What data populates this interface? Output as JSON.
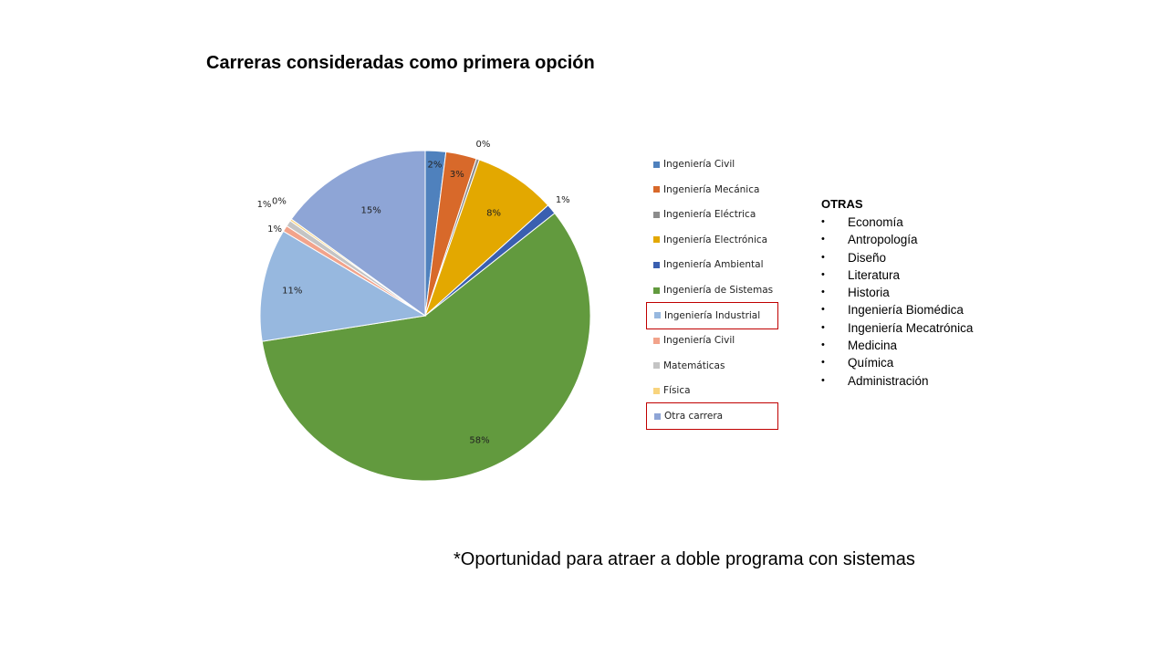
{
  "title": "Carreras consideradas como primera opción",
  "chart_data": {
    "type": "pie",
    "title": "",
    "slices": [
      {
        "label": "Ingeniería Civil",
        "value": 2,
        "value_label": "2%",
        "color": "#4F81BD"
      },
      {
        "label": "Ingeniería Mecánica",
        "value": 3,
        "value_label": "3%",
        "color": "#D8692A"
      },
      {
        "label": "Ingeniería Eléctrica",
        "value": 0.3,
        "value_label": "0%",
        "color": "#8C8C8C"
      },
      {
        "label": "Ingeniería Electrónica",
        "value": 8,
        "value_label": "8%",
        "color": "#E3A800"
      },
      {
        "label": "Ingeniería Ambiental",
        "value": 1,
        "value_label": "1%",
        "color": "#3A5FB0"
      },
      {
        "label": "Ingeniería de Sistemas",
        "value": 58,
        "value_label": "58%",
        "color": "#629A3E"
      },
      {
        "label": "Ingeniería Industrial",
        "value": 11,
        "value_label": "11%",
        "color": "#97B8DF"
      },
      {
        "label": "Ingeniería Civil",
        "value": 0.6,
        "value_label": "1%",
        "color": "#F2A38B"
      },
      {
        "label": "Matemáticas",
        "value": 0.6,
        "value_label": "1%",
        "color": "#C4C4C4"
      },
      {
        "label": "Física",
        "value": 0.2,
        "value_label": "0%",
        "color": "#F8D47E"
      },
      {
        "label": "Otra carrera",
        "value": 15,
        "value_label": "15%",
        "color": "#8EA5D6"
      }
    ],
    "legend_position": "right",
    "highlighted_legend_entries": [
      "Ingeniería Industrial",
      "Otra carrera"
    ],
    "highlight_color": "#C00000"
  },
  "otras": {
    "heading": "OTRAS",
    "bullet": "•",
    "items": [
      "Economía",
      "Antropología",
      "Diseño",
      "Literatura",
      "Historia",
      "Ingeniería Biomédica",
      "Ingeniería Mecatrónica",
      "Medicina",
      "Química",
      "Administración"
    ]
  },
  "footnote": "*Oportunidad para atraer a doble programa con sistemas"
}
